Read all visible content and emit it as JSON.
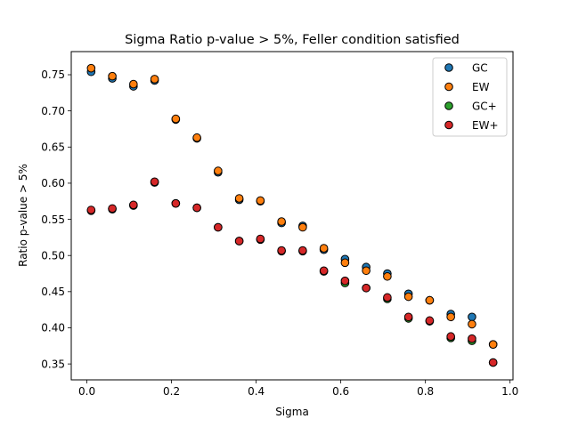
{
  "chart_data": {
    "type": "scatter",
    "title": "Sigma Ratio p-value > 5%, Feller condition satisfied",
    "xlabel": "Sigma",
    "ylabel": "Ratio p-value > 5%",
    "xlim": [
      -0.037,
      1.007
    ],
    "ylim": [
      0.328,
      0.782
    ],
    "xticks": [
      "0.0",
      "0.2",
      "0.4",
      "0.6",
      "0.8",
      "1.0"
    ],
    "xtick_values": [
      0.0,
      0.2,
      0.4,
      0.6,
      0.8,
      1.0
    ],
    "yticks": [
      "0.35",
      "0.40",
      "0.45",
      "0.50",
      "0.55",
      "0.60",
      "0.65",
      "0.70",
      "0.75"
    ],
    "ytick_values": [
      0.35,
      0.4,
      0.45,
      0.5,
      0.55,
      0.6,
      0.65,
      0.7,
      0.75
    ],
    "legend_position": "top-right",
    "grid": false,
    "x": [
      0.01,
      0.06,
      0.11,
      0.16,
      0.21,
      0.26,
      0.31,
      0.36,
      0.41,
      0.46,
      0.51,
      0.56,
      0.61,
      0.66,
      0.71,
      0.76,
      0.81,
      0.86,
      0.91,
      0.96
    ],
    "series": [
      {
        "name": "GC",
        "color": "#1f77b4",
        "values": [
          0.754,
          0.745,
          0.734,
          0.742,
          0.688,
          0.662,
          0.615,
          0.577,
          0.575,
          0.545,
          0.541,
          0.508,
          0.495,
          0.484,
          0.475,
          0.447,
          0.438,
          0.419,
          0.415,
          0.377
        ]
      },
      {
        "name": "EW",
        "color": "#ff7f0e",
        "values": [
          0.759,
          0.748,
          0.737,
          0.744,
          0.689,
          0.663,
          0.617,
          0.579,
          0.576,
          0.547,
          0.539,
          0.51,
          0.49,
          0.479,
          0.471,
          0.443,
          0.438,
          0.415,
          0.405,
          0.377
        ]
      },
      {
        "name": "GC+",
        "color": "#2ca02c",
        "values": [
          0.562,
          0.564,
          0.569,
          0.601,
          0.572,
          0.566,
          0.539,
          0.52,
          0.522,
          0.506,
          0.506,
          0.478,
          0.462,
          0.455,
          0.44,
          0.413,
          0.409,
          0.386,
          0.382,
          0.352
        ]
      },
      {
        "name": "EW+",
        "color": "#d62728",
        "values": [
          0.563,
          0.565,
          0.57,
          0.602,
          0.572,
          0.566,
          0.539,
          0.52,
          0.523,
          0.507,
          0.507,
          0.479,
          0.465,
          0.455,
          0.442,
          0.415,
          0.41,
          0.388,
          0.385,
          0.352
        ]
      }
    ]
  }
}
